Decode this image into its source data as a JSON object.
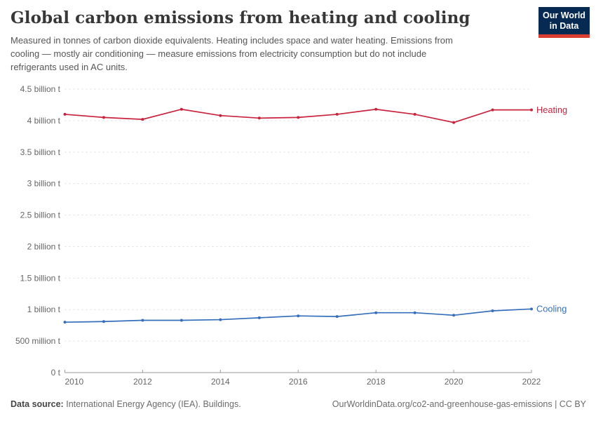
{
  "header": {
    "title": "Global carbon emissions from heating and cooling",
    "subtitle": "Measured in tonnes of carbon dioxide equivalents. Heating includes space and water heating. Emissions from\ncooling — mostly air conditioning — measure emissions from electricity consumption but do not include\nrefrigerants used in AC units.",
    "logo": {
      "line1": "Our World",
      "line2": "in Data",
      "bg": "#062a51",
      "stripe": "#dc3e32"
    }
  },
  "chart_data": {
    "type": "line",
    "x": [
      2010,
      2011,
      2012,
      2013,
      2014,
      2015,
      2016,
      2017,
      2018,
      2019,
      2020,
      2021,
      2022
    ],
    "unit": "billion tonnes of CO2 equivalents",
    "ylim": [
      0,
      4.5
    ],
    "y_tick_step": 0.5,
    "y_tick_labels": [
      "0 t",
      "500 million t",
      "1 billion t",
      "1.5 billion t",
      "2 billion t",
      "2.5 billion t",
      "3 billion t",
      "3.5 billion t",
      "4 billion t",
      "4.5 billion t"
    ],
    "x_tick_labels": [
      "2010",
      "2012",
      "2014",
      "2016",
      "2018",
      "2020",
      "2022"
    ],
    "grid": "horizontal-dashed",
    "legend_position": "right-of-line-end",
    "series": [
      {
        "name": "Heating",
        "color": "#c9243e",
        "values": [
          4.1,
          4.05,
          4.02,
          4.18,
          4.08,
          4.04,
          4.05,
          4.1,
          4.18,
          4.1,
          3.97,
          4.17,
          4.17
        ]
      },
      {
        "name": "Cooling",
        "color": "#356fbb",
        "values": [
          0.8,
          0.81,
          0.83,
          0.83,
          0.84,
          0.87,
          0.9,
          0.89,
          0.95,
          0.95,
          0.91,
          0.98,
          1.01
        ]
      }
    ],
    "colors": {
      "grid": "#dcdcdc",
      "axis": "#9a9a9a",
      "tick_text": "#666666"
    }
  },
  "footer": {
    "datasource_label": "Data source:",
    "datasource_value": "International Energy Agency (IEA). Buildings.",
    "attribution": "OurWorldinData.org/co2-and-greenhouse-gas-emissions | CC BY"
  }
}
